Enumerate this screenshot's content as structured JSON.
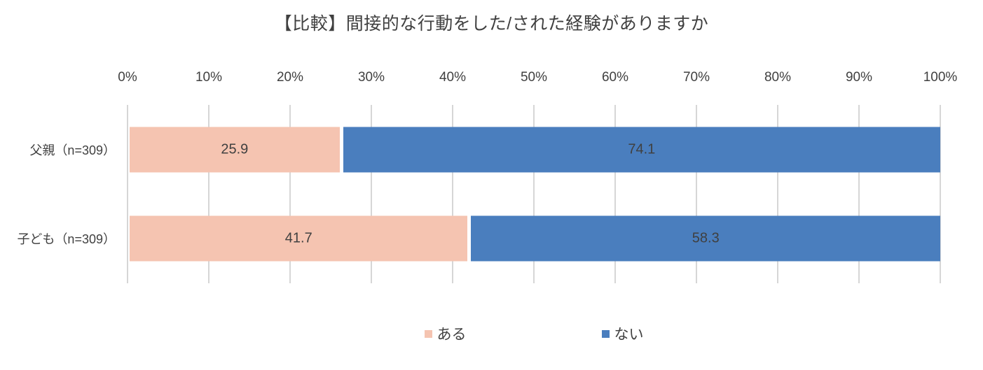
{
  "chart_data": {
    "type": "bar",
    "variant": "horizontal-stacked",
    "title": "【比較】間接的な行動をした/された経験がありますか",
    "categories": [
      "父親（n=309）",
      "子ども（n=309）"
    ],
    "series": [
      {
        "name": "ある",
        "color": "#F5C4B1",
        "values": [
          25.9,
          41.7
        ]
      },
      {
        "name": "ない",
        "color": "#4A7EBE",
        "values": [
          74.1,
          58.3
        ]
      }
    ],
    "x_ticks": [
      "0%",
      "10%",
      "20%",
      "30%",
      "40%",
      "50%",
      "60%",
      "70%",
      "80%",
      "90%",
      "100%"
    ],
    "xlim": [
      0,
      100
    ],
    "value_labels": true,
    "gridlines": true,
    "legend_position": "bottom-center",
    "colors": {
      "text": "#404040",
      "gridline": "#D6D6D6",
      "background": "#FFFFFF"
    }
  }
}
